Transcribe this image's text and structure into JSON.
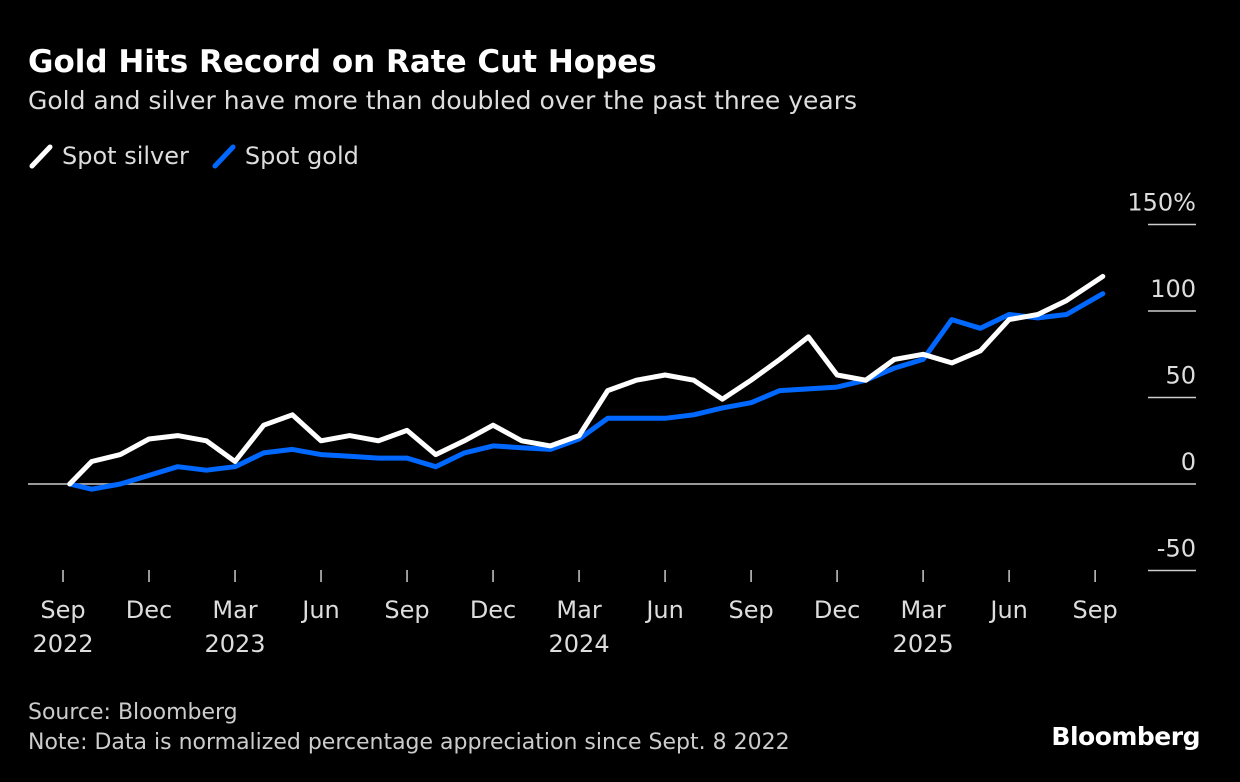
{
  "chart_data": {
    "type": "line",
    "title": "Gold Hits Record on Rate Cut Hopes",
    "subtitle": "Gold and silver have more than doubled over the past three years",
    "ylim": [
      -50,
      150
    ],
    "yticks": [
      150,
      100,
      50,
      0,
      -50
    ],
    "ytick_labels": [
      "150%",
      "100",
      "50",
      "0",
      "-50"
    ],
    "xticks": [
      {
        "date": "2022-09-01",
        "month": "Sep",
        "year": "2022"
      },
      {
        "date": "2022-12-01",
        "month": "Dec",
        "year": ""
      },
      {
        "date": "2023-03-01",
        "month": "Mar",
        "year": "2023"
      },
      {
        "date": "2023-06-01",
        "month": "Jun",
        "year": ""
      },
      {
        "date": "2023-09-01",
        "month": "Sep",
        "year": ""
      },
      {
        "date": "2023-12-01",
        "month": "Dec",
        "year": ""
      },
      {
        "date": "2024-03-01",
        "month": "Mar",
        "year": "2024"
      },
      {
        "date": "2024-06-01",
        "month": "Jun",
        "year": ""
      },
      {
        "date": "2024-09-01",
        "month": "Sep",
        "year": ""
      },
      {
        "date": "2024-12-01",
        "month": "Dec",
        "year": ""
      },
      {
        "date": "2025-03-01",
        "month": "Mar",
        "year": "2025"
      },
      {
        "date": "2025-06-01",
        "month": "Jun",
        "year": ""
      },
      {
        "date": "2025-09-01",
        "month": "Sep",
        "year": ""
      }
    ],
    "grid": false,
    "legend_placement": "top-left",
    "x": [
      "2022-09-08",
      "2022-10-01",
      "2022-11-01",
      "2022-12-01",
      "2023-01-01",
      "2023-02-01",
      "2023-03-01",
      "2023-04-01",
      "2023-05-01",
      "2023-06-01",
      "2023-07-01",
      "2023-08-01",
      "2023-09-01",
      "2023-10-01",
      "2023-11-01",
      "2023-12-01",
      "2024-01-01",
      "2024-02-01",
      "2024-03-01",
      "2024-04-01",
      "2024-05-01",
      "2024-06-01",
      "2024-07-01",
      "2024-08-01",
      "2024-09-01",
      "2024-10-01",
      "2024-11-01",
      "2024-12-01",
      "2025-01-01",
      "2025-02-01",
      "2025-03-01",
      "2025-04-01",
      "2025-05-01",
      "2025-06-01",
      "2025-07-01",
      "2025-08-01",
      "2025-09-09"
    ],
    "series": [
      {
        "name": "Spot silver",
        "color": "#ffffff",
        "values": [
          0,
          13,
          17,
          26,
          28,
          25,
          13,
          34,
          40,
          25,
          28,
          25,
          31,
          17,
          25,
          34,
          25,
          22,
          28,
          54,
          60,
          63,
          60,
          49,
          60,
          72,
          85,
          63,
          60,
          72,
          75,
          70,
          77,
          95,
          98,
          106,
          120
        ]
      },
      {
        "name": "Spot gold",
        "color": "#0068ff",
        "values": [
          0,
          -3,
          0,
          5,
          10,
          8,
          10,
          18,
          20,
          17,
          16,
          15,
          15,
          10,
          18,
          22,
          21,
          20,
          26,
          38,
          38,
          38,
          40,
          44,
          47,
          54,
          55,
          56,
          60,
          67,
          72,
          95,
          90,
          98,
          96,
          98,
          110
        ]
      }
    ]
  },
  "footer": {
    "source": "Source: Bloomberg",
    "note": "Note: Data is normalized percentage appreciation since Sept. 8 2022"
  },
  "logo": "Bloomberg"
}
